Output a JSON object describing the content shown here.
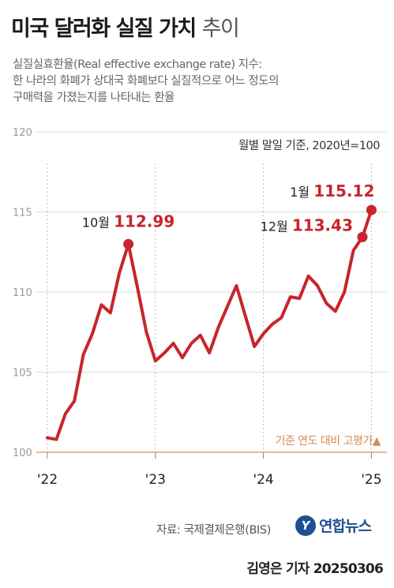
{
  "header": {
    "title_bold": "미국 달러화 실질 가치",
    "title_thin": "추이",
    "subtitle_lines": [
      "실질실효환율(Real effective exchange rate) 지수:",
      "한 나라의 화폐가 상대국 화폐보다 실질적으로 어느 정도의",
      "구매력을 가졌는지를 나타내는 환율"
    ],
    "note": "월별 말일 기준, 2020년=100"
  },
  "chart_data": {
    "type": "line",
    "ylim": [
      100,
      120
    ],
    "yticks": [
      "100",
      "105",
      "110",
      "115",
      "120"
    ],
    "xticks": [
      {
        "label": "'22",
        "x": 0
      },
      {
        "label": "'23",
        "x": 12
      },
      {
        "label": "'24",
        "x": 24
      },
      {
        "label": "'25",
        "x": 36
      }
    ],
    "series": [
      {
        "color": "#c8252c",
        "x": [
          0,
          1,
          2,
          3,
          4,
          5,
          6,
          7,
          8,
          9,
          10,
          11,
          12,
          13,
          14,
          15,
          16,
          17,
          18,
          19,
          20,
          21,
          22,
          23,
          24,
          25,
          26,
          27,
          28,
          29,
          30,
          31,
          32,
          33,
          34,
          35,
          36
        ],
        "values": [
          100.9,
          100.8,
          102.4,
          103.2,
          106.1,
          107.4,
          109.2,
          108.7,
          111.2,
          112.99,
          110.3,
          107.5,
          105.7,
          106.2,
          106.8,
          105.9,
          106.8,
          107.3,
          106.2,
          107.8,
          109.1,
          110.4,
          108.5,
          106.6,
          107.4,
          108.0,
          108.4,
          109.7,
          109.6,
          111.0,
          110.4,
          109.3,
          108.8,
          110.0,
          112.6,
          113.43,
          115.12
        ]
      }
    ],
    "annotations": [
      {
        "x": 9,
        "month": "10월",
        "value": "112.99"
      },
      {
        "x": 35,
        "month": "12월",
        "value": "113.43"
      },
      {
        "x": 36,
        "month": "1월",
        "value": "115.12"
      }
    ],
    "baseline_label": "기준 연도 대비 고평가▲"
  },
  "colors": {
    "line": "#c8252c",
    "baseline": "#e2a472",
    "baseline_text": "#d68b55",
    "grid": "#d9d9d9",
    "axis_text": "#999999"
  },
  "footer": {
    "source": "자료: 국제결제은행(BIS)",
    "logo_mark": "Y",
    "logo_name": "연합뉴스",
    "credit": "김영은 기자  20250306"
  }
}
